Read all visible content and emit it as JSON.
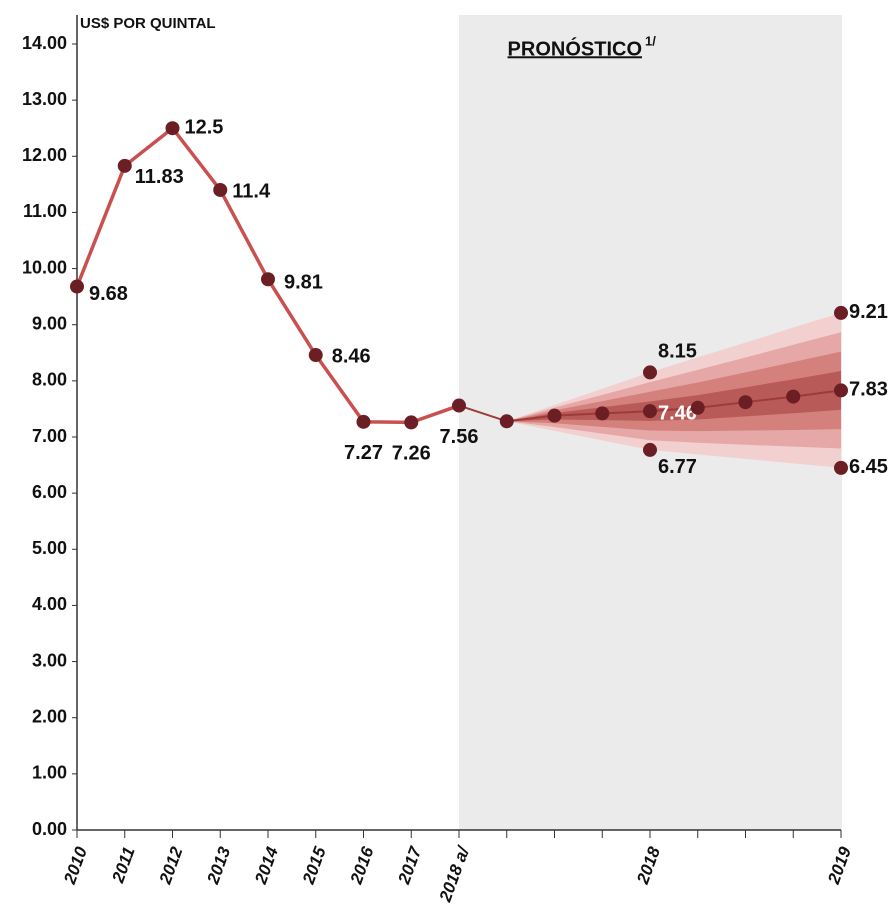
{
  "chart_data": {
    "type": "line",
    "title": "US$ POR QUINTAL",
    "annotation": "PRONÓSTICO",
    "annotation_sup": "1/",
    "categories": [
      "2010",
      "2011",
      "2012",
      "2013",
      "2014",
      "2015",
      "2016",
      "2017",
      "2018 a/",
      null,
      null,
      null,
      "2018",
      null,
      null,
      null,
      "2019"
    ],
    "series": [
      {
        "color": "#c9504f",
        "values": [
          9.68,
          11.83,
          12.5,
          11.4,
          9.81,
          8.46,
          7.27,
          7.26,
          7.56,
          null,
          null,
          null,
          null,
          null,
          null,
          null,
          null
        ],
        "value_labels": [
          "9.68",
          "11.83",
          "12.5",
          "11.4",
          "9.81",
          "8.46",
          "7.27",
          "7.26",
          "7.56",
          null,
          null,
          null,
          null,
          null,
          null,
          null,
          null
        ]
      },
      {
        "color": "#9e3a3a",
        "values": [
          null,
          null,
          null,
          null,
          null,
          null,
          null,
          null,
          7.56,
          7.28,
          7.38,
          7.42,
          7.46,
          7.52,
          7.62,
          7.72,
          7.83
        ],
        "value_labels": [
          null,
          null,
          null,
          null,
          null,
          null,
          null,
          null,
          null,
          null,
          null,
          null,
          "7.46",
          null,
          null,
          null,
          "7.83"
        ]
      },
      {
        "color": "#f2d0cf",
        "values": [
          null,
          null,
          null,
          null,
          null,
          null,
          null,
          null,
          null,
          7.28,
          7.57,
          7.86,
          8.15,
          8.42,
          8.68,
          8.95,
          9.21
        ],
        "value_labels": [
          null,
          null,
          null,
          null,
          null,
          null,
          null,
          null,
          null,
          null,
          null,
          null,
          "8.15",
          null,
          null,
          null,
          "9.21"
        ]
      },
      {
        "color": "#f2d0cf",
        "values": [
          null,
          null,
          null,
          null,
          null,
          null,
          null,
          null,
          null,
          7.28,
          7.11,
          6.94,
          6.77,
          6.69,
          6.61,
          6.53,
          6.45
        ],
        "value_labels": [
          null,
          null,
          null,
          null,
          null,
          null,
          null,
          null,
          null,
          null,
          null,
          null,
          "6.77",
          null,
          null,
          null,
          "6.45"
        ]
      }
    ],
    "marker_color": "#6b1e24",
    "ylim": [
      0,
      14
    ],
    "yticks": [
      {
        "value": 0,
        "label": "0.00"
      },
      {
        "value": 1,
        "label": "1.00"
      },
      {
        "value": 2,
        "label": "2.00"
      },
      {
        "value": 3,
        "label": "3.00"
      },
      {
        "value": 4,
        "label": "4.00"
      },
      {
        "value": 5,
        "label": "5.00"
      },
      {
        "value": 6,
        "label": "6.00"
      },
      {
        "value": 7,
        "label": "7.00"
      },
      {
        "value": 8,
        "label": "8.00"
      },
      {
        "value": 9,
        "label": "9.00"
      },
      {
        "value": 10,
        "label": "10.00"
      },
      {
        "value": 11,
        "label": "11.00"
      },
      {
        "value": 12,
        "label": "12.00"
      },
      {
        "value": 13,
        "label": "13.00"
      },
      {
        "value": 14,
        "label": "14.00"
      }
    ],
    "grid": false
  }
}
